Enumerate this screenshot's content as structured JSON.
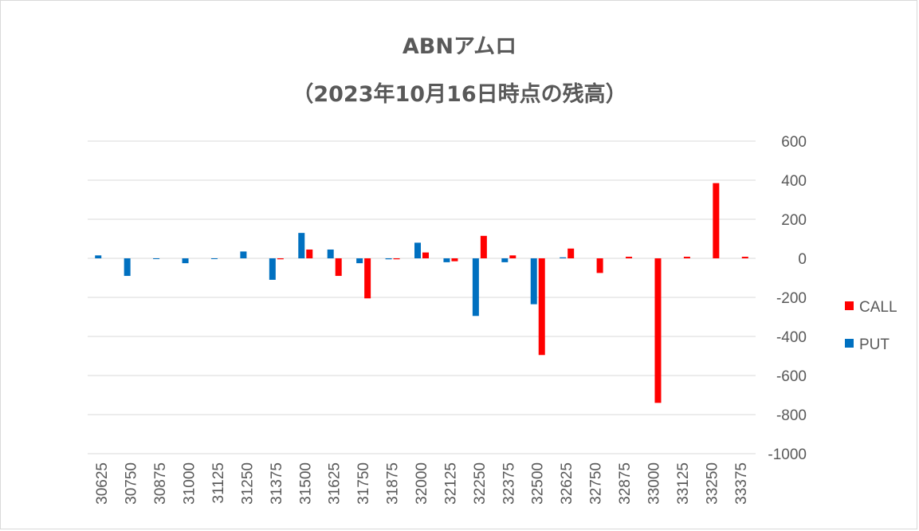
{
  "title_line1": "ABNアムロ",
  "title_line2": "（2023年10月16日時点の残高）",
  "colors": {
    "CALL": "#ff0000",
    "PUT": "#0070c0",
    "grid": "#d9d9d9",
    "text": "#595959"
  },
  "chart_data": {
    "type": "bar",
    "title": "ABNアムロ （2023年10月16日時点の残高）",
    "categories": [
      "30625",
      "30750",
      "30875",
      "31000",
      "31125",
      "31250",
      "31375",
      "31500",
      "31625",
      "31750",
      "31875",
      "32000",
      "32125",
      "32250",
      "32375",
      "32500",
      "32625",
      "32750",
      "32875",
      "33000",
      "33125",
      "33250",
      "33375"
    ],
    "series": [
      {
        "name": "PUT",
        "values": [
          15,
          -90,
          -3,
          -25,
          -3,
          35,
          -110,
          130,
          45,
          -25,
          -5,
          80,
          -20,
          -295,
          -20,
          -235,
          5,
          0,
          0,
          0,
          0,
          0,
          0
        ]
      },
      {
        "name": "CALL",
        "values": [
          0,
          0,
          0,
          0,
          0,
          0,
          -5,
          45,
          -90,
          -205,
          -5,
          30,
          -15,
          115,
          15,
          -495,
          50,
          -75,
          8,
          -740,
          8,
          385,
          8
        ]
      }
    ],
    "ylim": [
      -1000,
      600
    ],
    "yticks": [
      "600",
      "400",
      "200",
      "0",
      "-200",
      "-400",
      "-600",
      "-800",
      "-1000"
    ],
    "ytick_values": [
      600,
      400,
      200,
      0,
      -200,
      -400,
      -600,
      -800,
      -1000
    ],
    "legend": [
      "CALL",
      "PUT"
    ],
    "legend_position": "right",
    "grid": true,
    "y_axis_side": "right",
    "xlabel": "",
    "ylabel": ""
  }
}
